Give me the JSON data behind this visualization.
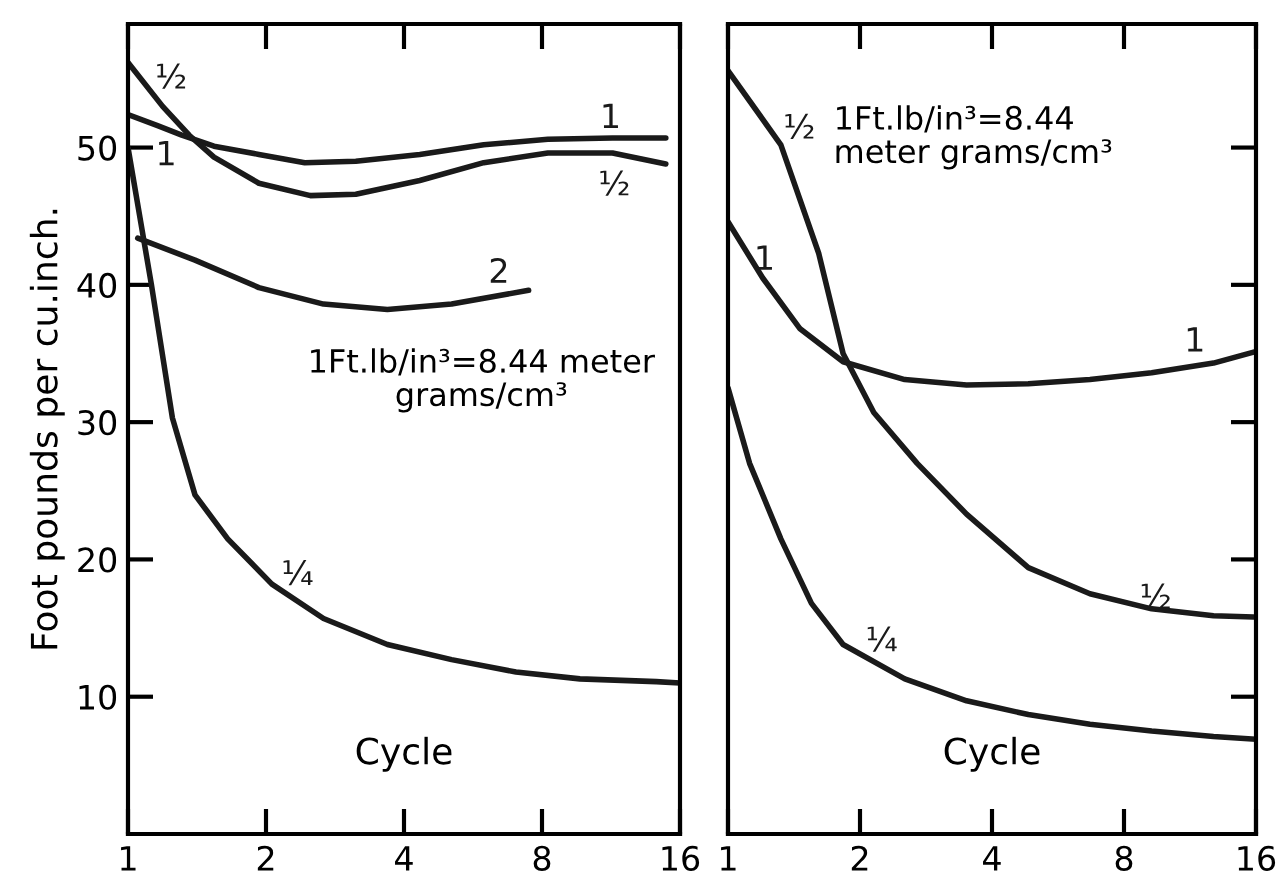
{
  "chart_data": [
    {
      "type": "line",
      "xlabel": "Cycle",
      "ylabel": "Foot pounds per cu.inch.",
      "log": "x",
      "xlim": [
        1,
        16
      ],
      "xticks": [
        1,
        2,
        4,
        8,
        16
      ],
      "ylim": [
        0,
        59
      ],
      "yticks": [
        10,
        20,
        30,
        40,
        50
      ],
      "series": [
        {
          "name": "1",
          "color": "#1a1a1a",
          "x": [
            1,
            1.16,
            1.31,
            1.54,
            1.93,
            2.43,
            3.14,
            4.33,
            5.97,
            8.24,
            11.4,
            14.9
          ],
          "values": [
            52.4,
            51.6,
            50.9,
            50.1,
            49.5,
            48.9,
            49.0,
            49.5,
            50.2,
            50.6,
            50.7,
            50.7
          ]
        },
        {
          "name": "½",
          "color": "#1a1a1a",
          "x": [
            1,
            1.19,
            1.36,
            1.54,
            1.93,
            2.5,
            3.14,
            4.33,
            5.97,
            8.24,
            11.4,
            14.9
          ],
          "values": [
            56.2,
            53.0,
            50.9,
            49.3,
            47.4,
            46.5,
            46.6,
            47.6,
            48.9,
            49.6,
            49.6,
            48.8
          ]
        },
        {
          "name": "2",
          "color": "#1a1a1a",
          "x": [
            1.05,
            1.4,
            1.93,
            2.67,
            3.68,
            5.08,
            7.48
          ],
          "values": [
            43.4,
            41.8,
            39.8,
            38.6,
            38.2,
            38.6,
            39.6
          ]
        },
        {
          "name": "¼",
          "color": "#1a1a1a",
          "x": [
            1,
            1.125,
            1.25,
            1.4,
            1.65,
            2.06,
            2.67,
            3.68,
            5.08,
            7.02,
            9.68,
            14.2,
            16
          ],
          "values": [
            50,
            40,
            30.3,
            24.7,
            21.5,
            18.2,
            15.7,
            13.8,
            12.7,
            11.8,
            11.3,
            11.1,
            11.0
          ]
        }
      ],
      "annotations": [
        "1Ft.lb/in³=8.44 meter\ngrams/cm³"
      ]
    },
    {
      "type": "line",
      "xlabel": "Cycle",
      "log": "x",
      "xlim": [
        1,
        16
      ],
      "xticks": [
        1,
        2,
        4,
        8,
        16
      ],
      "ylim": [
        0,
        59
      ],
      "yticks": [
        10,
        20,
        30,
        40,
        50
      ],
      "tick_labels": "x",
      "series": [
        {
          "name": "½",
          "color": "#1a1a1a",
          "x": [
            1,
            1.32,
            1.61,
            1.83,
            2.15,
            2.7,
            3.5,
            4.84,
            6.69,
            9.25,
            12.8,
            15.8
          ],
          "values": [
            55.6,
            50.2,
            42.3,
            35.0,
            30.7,
            27.0,
            23.3,
            19.4,
            17.5,
            16.4,
            15.9,
            15.8
          ]
        },
        {
          "name": "1",
          "color": "#1a1a1a",
          "x": [
            1,
            1.2,
            1.46,
            1.83,
            2.53,
            3.5,
            4.84,
            6.69,
            9.25,
            12.8,
            15.8
          ],
          "values": [
            44.6,
            40.5,
            36.8,
            34.4,
            33.1,
            32.7,
            32.8,
            33.1,
            33.6,
            34.3,
            35.1
          ]
        },
        {
          "name": "¼",
          "color": "#1a1a1a",
          "x": [
            1,
            1.12,
            1.32,
            1.55,
            1.83,
            2.53,
            3.5,
            4.84,
            6.69,
            9.25,
            12.8,
            16
          ],
          "values": [
            32.5,
            27.0,
            21.5,
            16.8,
            13.8,
            11.3,
            9.7,
            8.7,
            8.0,
            7.5,
            7.1,
            6.9
          ]
        }
      ],
      "annotations": [
        "1Ft.lb/in³=8.44\nmeter grams/cm³"
      ]
    }
  ]
}
